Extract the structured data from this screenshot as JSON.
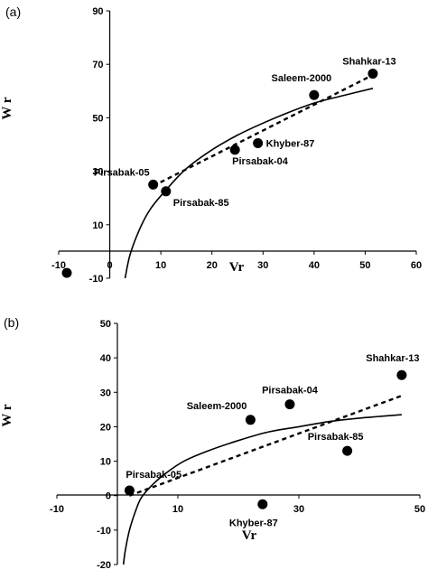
{
  "chart_data": [
    {
      "type": "scatter",
      "panel_label": "(a)",
      "xlabel": "Vr",
      "ylabel": "W r",
      "xlim": [
        -10,
        60
      ],
      "ylim": [
        -10,
        90
      ],
      "xticks": [
        -10,
        0,
        10,
        20,
        30,
        40,
        50,
        60
      ],
      "yticks": [
        -10,
        10,
        30,
        50,
        70,
        90
      ],
      "grid": false,
      "points": [
        {
          "label": "Pirsabak-05",
          "x": 8.5,
          "y": 25
        },
        {
          "label": "Pirsabak-85",
          "x": 11,
          "y": 22.5
        },
        {
          "label": "Pirsabak-04",
          "x": 24.5,
          "y": 38
        },
        {
          "label": "Khyber-87",
          "x": 29,
          "y": 40.5
        },
        {
          "label": "Saleem-2000",
          "x": 40,
          "y": 58.5
        },
        {
          "label": "Shahkar-13",
          "x": 51.5,
          "y": 66.5
        }
      ],
      "extra_points": [
        {
          "x": -10,
          "y": -8
        }
      ],
      "curves": [
        {
          "style": "solid",
          "kind": "parabola",
          "x": [
            3,
            4,
            6,
            8,
            11,
            15,
            20,
            25,
            30,
            35,
            40,
            45,
            51.5
          ],
          "y": [
            -10,
            -1,
            9,
            16,
            23,
            31,
            38,
            43.5,
            48,
            52,
            55.5,
            58,
            61
          ]
        },
        {
          "style": "dashed",
          "kind": "regression",
          "x": [
            8.5,
            51.5
          ],
          "y": [
            24.5,
            66
          ]
        }
      ]
    },
    {
      "type": "scatter",
      "panel_label": "(b)",
      "xlabel": "Vr",
      "ylabel": "W r",
      "xlim": [
        -10,
        50
      ],
      "ylim": [
        -20,
        50
      ],
      "xticks": [
        -10,
        10,
        30,
        50
      ],
      "yticks": [
        -20,
        -10,
        0,
        10,
        20,
        30,
        40,
        50
      ],
      "grid": false,
      "points": [
        {
          "label": "Pirsabak-05",
          "x": 2,
          "y": 1.5
        },
        {
          "label": "Khyber-87",
          "x": 24,
          "y": -2.5
        },
        {
          "label": "Saleem-2000",
          "x": 22,
          "y": 22
        },
        {
          "label": "Pirsabak-04",
          "x": 28.5,
          "y": 26.5
        },
        {
          "label": "Pirsabak-85",
          "x": 38,
          "y": 13
        },
        {
          "label": "Shahkar-13",
          "x": 47,
          "y": 35
        }
      ],
      "curves": [
        {
          "style": "solid",
          "kind": "parabola",
          "x": [
            1,
            1.3,
            2,
            3,
            4,
            6,
            8,
            11,
            15,
            20,
            25,
            30,
            35,
            40,
            47
          ],
          "y": [
            -20,
            -16,
            -10,
            -4.5,
            -0.5,
            3.5,
            6.5,
            10,
            13,
            16,
            18.5,
            20,
            21.5,
            22.5,
            23.5
          ]
        },
        {
          "style": "dashed",
          "kind": "regression",
          "x": [
            2,
            47
          ],
          "y": [
            0,
            29
          ]
        }
      ]
    }
  ]
}
